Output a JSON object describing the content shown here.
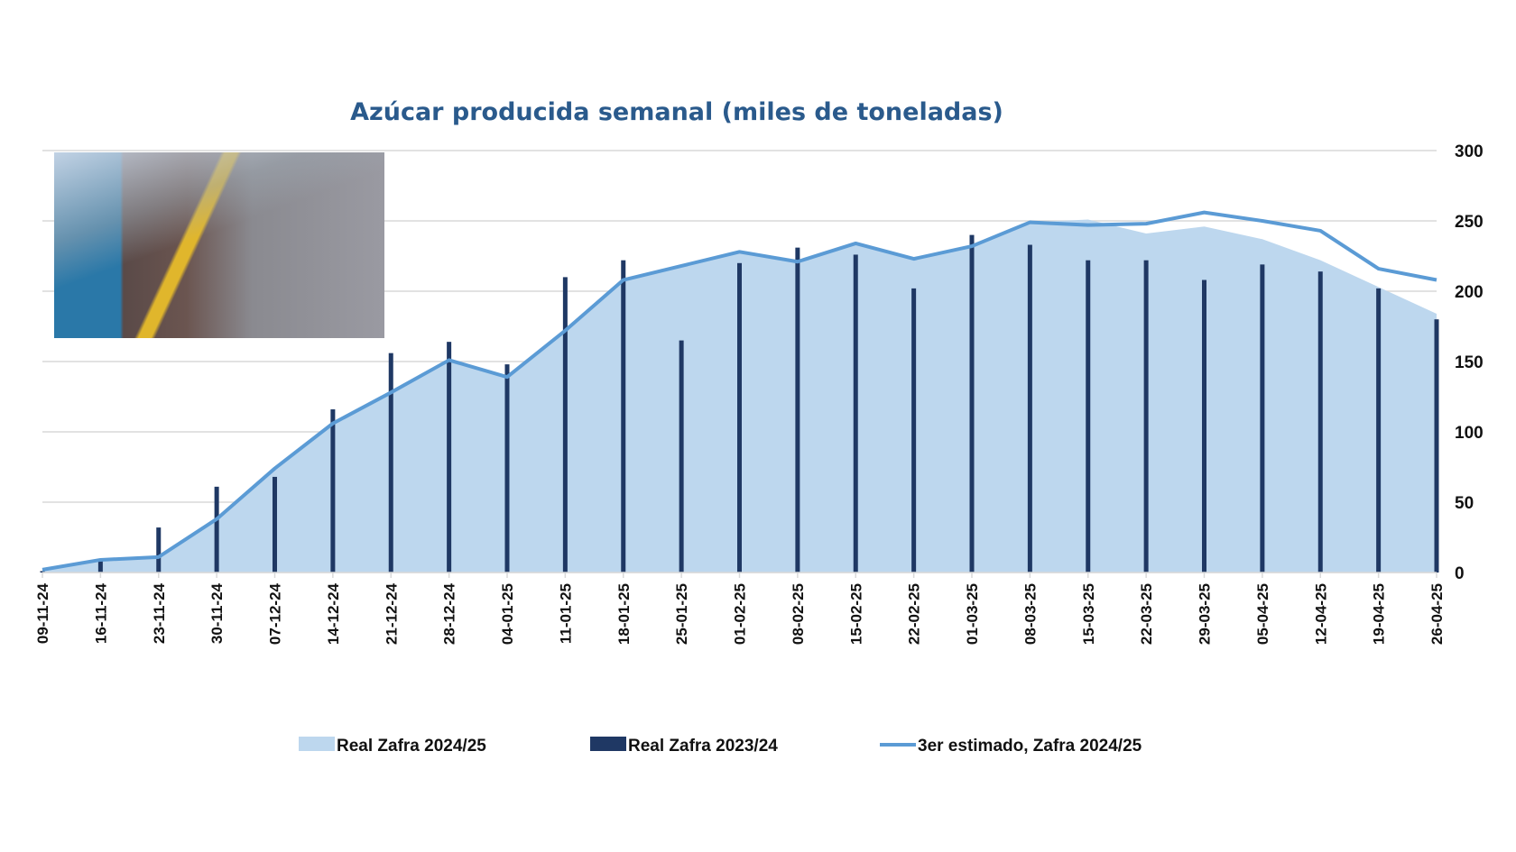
{
  "chart_data": {
    "type": "area+bar+line",
    "title": "Azúcar producida semanal (miles de toneladas)",
    "xlabel": "",
    "ylabel": "",
    "ylim": [
      0,
      300
    ],
    "yticks": [
      "0",
      "50",
      "100",
      "150",
      "200",
      "250",
      "300"
    ],
    "grid": true,
    "legend_position": "bottom",
    "categories": [
      "09-11-24",
      "16-11-24",
      "23-11-24",
      "30-11-24",
      "07-12-24",
      "14-12-24",
      "21-12-24",
      "28-12-24",
      "04-01-25",
      "11-01-25",
      "18-01-25",
      "25-01-25",
      "01-02-25",
      "08-02-25",
      "15-02-25",
      "22-02-25",
      "01-03-25",
      "08-03-25",
      "15-03-25",
      "22-03-25",
      "29-03-25",
      "05-04-25",
      "12-04-25",
      "19-04-25",
      "26-04-25"
    ],
    "series": [
      {
        "name": "Real Zafra 2024/25",
        "kind": "area",
        "color": "#bdd7ee",
        "values": [
          2,
          9,
          11,
          38,
          74,
          106,
          128,
          151,
          139,
          172,
          208,
          218,
          228,
          221,
          234,
          223,
          232,
          249,
          251,
          241,
          246,
          237,
          222,
          203,
          184
        ]
      },
      {
        "name": "Real Zafra 2023/24",
        "kind": "bar",
        "color": "#1f3864",
        "values": [
          1,
          9,
          32,
          61,
          68,
          116,
          156,
          164,
          148,
          210,
          222,
          165,
          220,
          231,
          226,
          202,
          240,
          233,
          222,
          222,
          208,
          219,
          214,
          202,
          180
        ]
      },
      {
        "name": "3er estimado, Zafra 2024/25",
        "kind": "line",
        "color": "#5b9bd5",
        "values": [
          2,
          9,
          11,
          38,
          74,
          106,
          128,
          151,
          139,
          172,
          208,
          218,
          228,
          221,
          234,
          223,
          232,
          249,
          247,
          248,
          256,
          250,
          243,
          216,
          208
        ]
      }
    ]
  }
}
